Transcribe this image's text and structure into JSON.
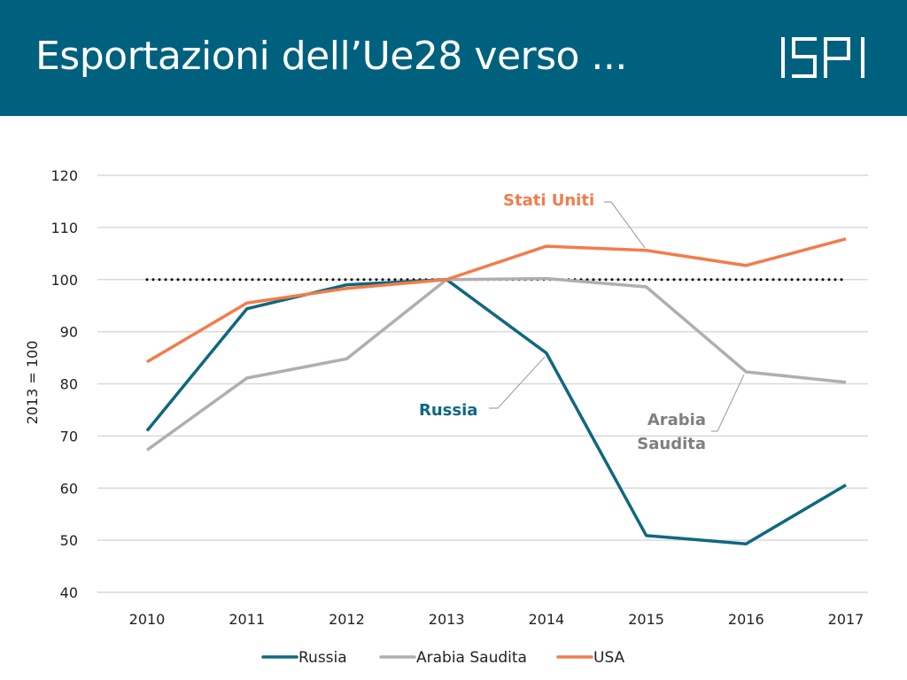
{
  "header": {
    "title": "Esportazioni dell’Ue28 verso ...",
    "logo": "ISPI"
  },
  "colors": {
    "header_bg": "#00617f",
    "russia": "#0e6880",
    "saudi": "#b0aeae",
    "usa": "#f47b4a",
    "grid": "#d9d9d9",
    "reference": "#000000"
  },
  "chart_data": {
    "type": "line",
    "title": "",
    "xlabel": "",
    "ylabel": "2013 = 100",
    "x": [
      "2010",
      "2011",
      "2012",
      "2013",
      "2014",
      "2015",
      "2016",
      "2017"
    ],
    "ylim": [
      40,
      120
    ],
    "yticks": [
      40,
      50,
      60,
      70,
      80,
      90,
      100,
      110,
      120
    ],
    "grid": true,
    "legend_position": "bottom",
    "reference_line": {
      "value": 100,
      "style": "dotted"
    },
    "series": [
      {
        "name": "Russia",
        "key": "russia",
        "values": [
          71,
          94.4,
          99,
          100,
          85.9,
          50.9,
          49.3,
          60.6
        ]
      },
      {
        "name": "Arabia Saudita",
        "key": "saudi",
        "values": [
          67.3,
          81.1,
          84.8,
          100,
          100.2,
          98.6,
          82.3,
          80.3
        ]
      },
      {
        "name": "USA",
        "key": "usa",
        "values": [
          84.2,
          95.5,
          98.3,
          100,
          106.4,
          105.6,
          102.7,
          107.8
        ]
      }
    ],
    "annotations": [
      {
        "text": "Stati Uniti",
        "series": "usa",
        "color": "#f47b4a"
      },
      {
        "text": "Russia",
        "series": "russia",
        "color": "#0e6880"
      },
      {
        "text": "Arabia",
        "text2": "Saudita",
        "series": "saudi",
        "color": "#7f7f7f"
      }
    ]
  }
}
